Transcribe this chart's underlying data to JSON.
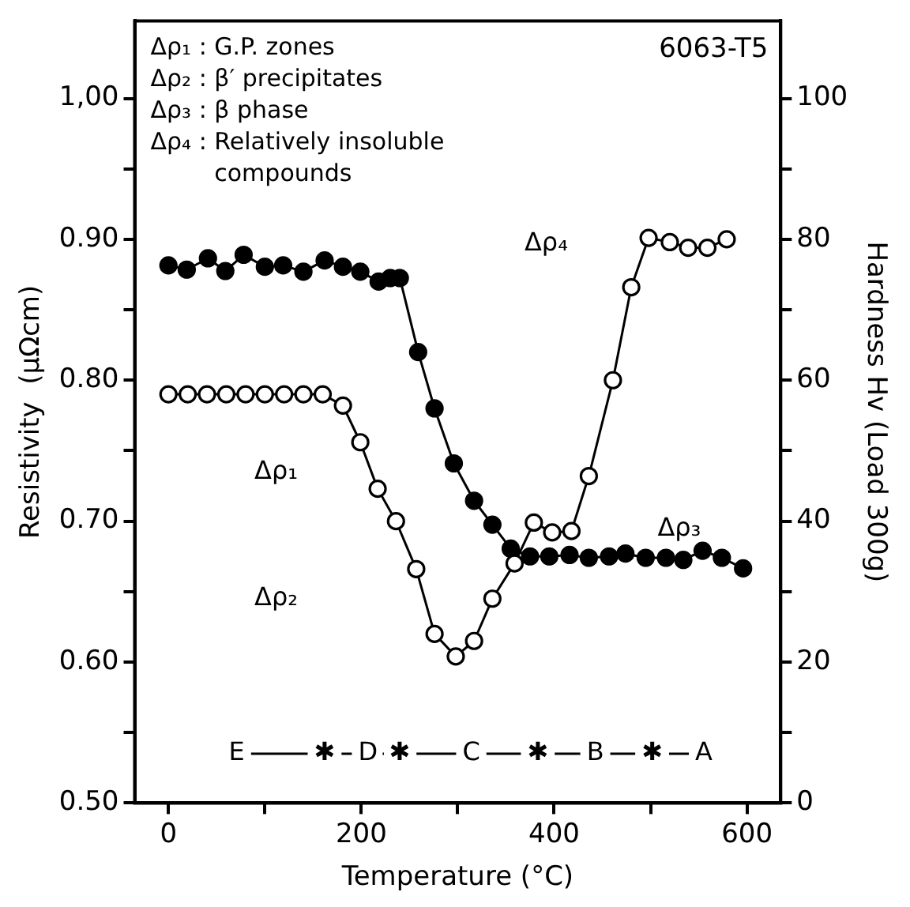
{
  "chart_data": {
    "type": "line",
    "title": "6063-T5",
    "xlabel": "Temperature (°C)",
    "ylabel": "Resistivity  (μΩcm)",
    "y2label": "Hardness Hv (Load 300g)",
    "xlim": [
      -35,
      635
    ],
    "xticks": [
      0,
      {
        "value": 100,
        "label": null
      },
      200,
      {
        "value": 300,
        "label": null
      },
      400,
      {
        "value": 500,
        "label": null
      },
      600
    ],
    "ylim": [
      0.5,
      1.055
    ],
    "yticks": [
      {
        "value": 0.5,
        "label": "0.50"
      },
      {
        "value": 0.55,
        "label": null
      },
      {
        "value": 0.6,
        "label": "0.60"
      },
      {
        "value": 0.65,
        "label": null
      },
      {
        "value": 0.7,
        "label": "0.70"
      },
      {
        "value": 0.75,
        "label": null
      },
      {
        "value": 0.8,
        "label": "0.80"
      },
      {
        "value": 0.85,
        "label": null
      },
      {
        "value": 0.9,
        "label": "0.90"
      },
      {
        "value": 0.95,
        "label": null
      },
      {
        "value": 1.0,
        "label": "1,00"
      }
    ],
    "y2lim": [
      0,
      111
    ],
    "y2ticks": [
      0,
      {
        "value": 10,
        "label": null
      },
      20,
      {
        "value": 30,
        "label": null
      },
      40,
      {
        "value": 50,
        "label": null
      },
      60,
      {
        "value": 70,
        "label": null
      },
      80,
      {
        "value": 90,
        "label": null
      },
      100
    ],
    "grid": false,
    "legend": false,
    "marker": "circle",
    "line_style": "solid",
    "series": [
      {
        "color": "#000000",
        "axis": "y",
        "x": [
          0,
          20,
          40,
          60,
          80,
          100,
          120,
          140,
          160,
          181,
          199,
          217,
          236,
          257,
          276,
          298,
          317,
          336,
          359,
          379,
          398,
          418,
          436,
          461,
          480,
          498,
          520,
          539,
          559,
          579
        ],
        "values": [
          0.79,
          0.79,
          0.79,
          0.79,
          0.79,
          0.79,
          0.79,
          0.79,
          0.79,
          0.782,
          0.756,
          0.723,
          0.7,
          0.666,
          0.62,
          0.604,
          0.615,
          0.645,
          0.67,
          0.699,
          0.692,
          0.693,
          0.732,
          0.8,
          0.866,
          0.901,
          0.898,
          0.894,
          0.894,
          0.9
        ]
      },
      {
        "color": "#000000",
        "axis": "y2",
        "x": [
          0,
          19,
          41,
          59,
          78,
          100,
          119,
          140,
          162,
          181,
          199,
          218,
          230,
          240,
          259,
          276,
          296,
          317,
          336,
          355,
          375,
          395,
          416,
          436,
          457,
          474,
          495,
          516,
          534,
          554,
          574,
          596
        ],
        "values": [
          76.3,
          75.7,
          77.3,
          75.5,
          77.8,
          76.1,
          76.3,
          75.4,
          77,
          76.1,
          75.4,
          74,
          74.5,
          74.5,
          64,
          56,
          48.2,
          42.9,
          39.5,
          36.1,
          35,
          35,
          35.2,
          34.8,
          35,
          35.4,
          34.8,
          34.8,
          34.5,
          35.8,
          34.8,
          33.3
        ]
      }
    ],
    "annotations": [
      "Δρ₁ : G.P. zones",
      "Δρ₂ : β′ precipitates",
      "Δρ₃ : β phase",
      "Δρ₄ : Relatively insoluble compounds",
      "Δρ₁",
      "Δρ₂",
      "Δρ₃",
      "Δρ₄",
      "E",
      "✱",
      "D",
      "✱",
      "C",
      "✱",
      "B",
      "✱",
      "A"
    ]
  }
}
